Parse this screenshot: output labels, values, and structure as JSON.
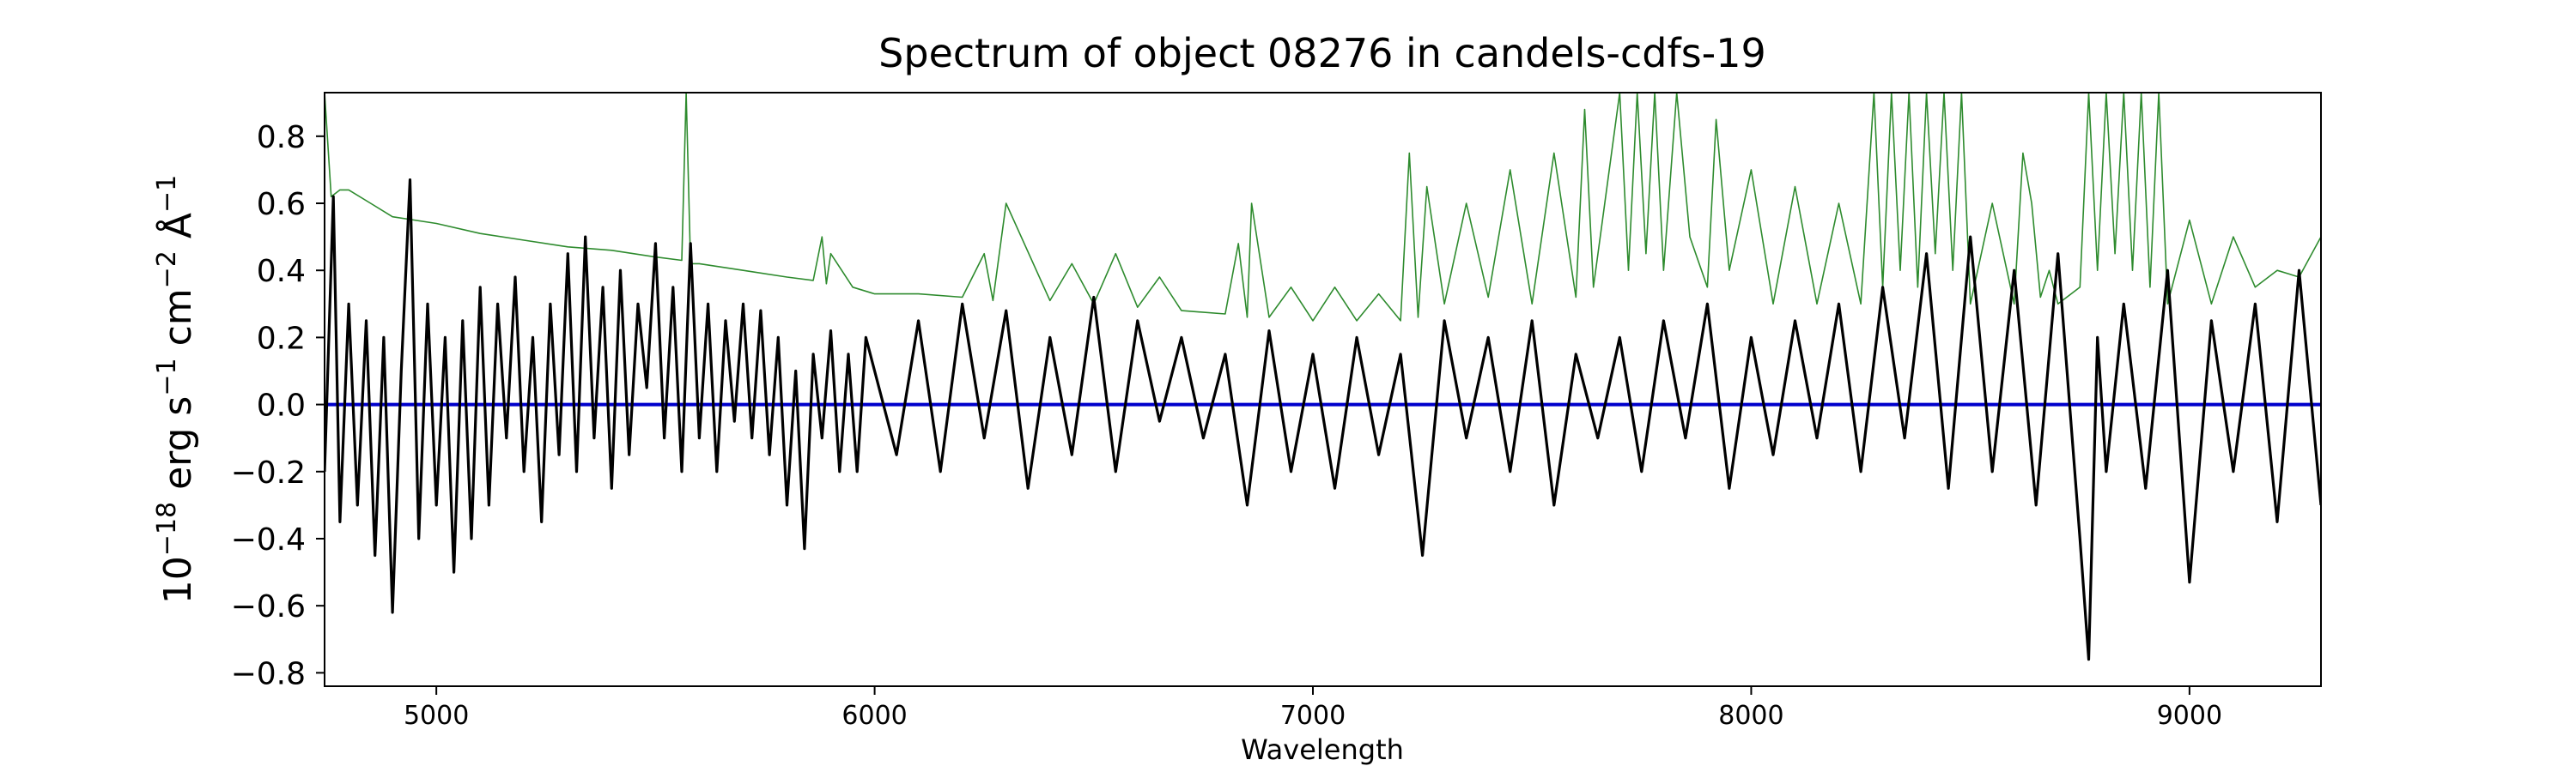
{
  "chart_data": {
    "type": "line",
    "title": "Spectrum of object 08276 in candels-cdfs-19",
    "xlabel": "Wavelength",
    "ylabel": "10^{-18} erg s^{-1} cm^{-2} Å^{-1}",
    "ylabel_parts": [
      "10",
      "−18",
      " erg s",
      "−1",
      " cm",
      "−2",
      " Å",
      "−1"
    ],
    "xlim": [
      4745,
      9300
    ],
    "ylim": [
      -0.84,
      0.93
    ],
    "x_ticks": [
      5000,
      6000,
      7000,
      8000,
      9000
    ],
    "x_tick_labels": [
      "5000",
      "6000",
      "7000",
      "8000",
      "9000"
    ],
    "y_ticks": [
      -0.8,
      -0.6,
      -0.4,
      -0.2,
      0.0,
      0.2,
      0.4,
      0.6,
      0.8
    ],
    "y_tick_labels": [
      "−0.8",
      "−0.6",
      "−0.4",
      "−0.2",
      "0.0",
      "0.2",
      "0.4",
      "0.6",
      "0.8"
    ],
    "grid": false,
    "colors": {
      "flux": "#000000",
      "error": "#2e8b2e",
      "model": "#0000cc"
    },
    "series": [
      {
        "key": "flux",
        "x": [
          4745,
          4765,
          4780,
          4800,
          4820,
          4840,
          4860,
          4880,
          4900,
          4920,
          4940,
          4960,
          4980,
          5000,
          5020,
          5040,
          5060,
          5080,
          5100,
          5120,
          5140,
          5160,
          5180,
          5200,
          5220,
          5240,
          5260,
          5280,
          5300,
          5320,
          5340,
          5360,
          5380,
          5400,
          5420,
          5440,
          5460,
          5480,
          5500,
          5520,
          5540,
          5560,
          5580,
          5600,
          5620,
          5640,
          5660,
          5680,
          5700,
          5720,
          5740,
          5760,
          5780,
          5800,
          5820,
          5840,
          5860,
          5880,
          5900,
          5920,
          5940,
          5960,
          5980,
          6000,
          6050,
          6100,
          6150,
          6200,
          6250,
          6300,
          6350,
          6400,
          6450,
          6500,
          6550,
          6600,
          6650,
          6700,
          6750,
          6800,
          6850,
          6900,
          6950,
          7000,
          7050,
          7100,
          7150,
          7200,
          7250,
          7300,
          7350,
          7400,
          7450,
          7500,
          7550,
          7600,
          7650,
          7700,
          7750,
          7800,
          7850,
          7900,
          7950,
          8000,
          8050,
          8100,
          8150,
          8200,
          8250,
          8300,
          8350,
          8400,
          8450,
          8500,
          8550,
          8600,
          8650,
          8700,
          8750,
          8770,
          8790,
          8810,
          8850,
          8900,
          8950,
          9000,
          9050,
          9100,
          9150,
          9200,
          9250,
          9300
        ],
        "y": [
          -0.2,
          0.62,
          -0.35,
          0.3,
          -0.3,
          0.25,
          -0.45,
          0.2,
          -0.62,
          0.1,
          0.67,
          -0.4,
          0.3,
          -0.3,
          0.2,
          -0.5,
          0.25,
          -0.4,
          0.35,
          -0.3,
          0.3,
          -0.1,
          0.38,
          -0.2,
          0.2,
          -0.35,
          0.3,
          -0.15,
          0.45,
          -0.2,
          0.5,
          -0.1,
          0.35,
          -0.25,
          0.4,
          -0.15,
          0.3,
          0.05,
          0.48,
          -0.1,
          0.35,
          -0.2,
          0.48,
          -0.1,
          0.3,
          -0.2,
          0.25,
          -0.05,
          0.3,
          -0.1,
          0.28,
          -0.15,
          0.2,
          -0.3,
          0.1,
          -0.43,
          0.15,
          -0.1,
          0.22,
          -0.2,
          0.15,
          -0.2,
          0.2,
          0.1,
          -0.15,
          0.25,
          -0.2,
          0.3,
          -0.1,
          0.28,
          -0.25,
          0.2,
          -0.15,
          0.32,
          -0.2,
          0.25,
          -0.05,
          0.2,
          -0.1,
          0.15,
          -0.3,
          0.22,
          -0.2,
          0.15,
          -0.25,
          0.2,
          -0.15,
          0.15,
          -0.45,
          0.25,
          -0.1,
          0.2,
          -0.2,
          0.25,
          -0.3,
          0.15,
          -0.1,
          0.2,
          -0.2,
          0.25,
          -0.1,
          0.3,
          -0.25,
          0.2,
          -0.15,
          0.25,
          -0.1,
          0.3,
          -0.2,
          0.35,
          -0.1,
          0.45,
          -0.25,
          0.5,
          -0.2,
          0.4,
          -0.3,
          0.45,
          -0.4,
          -0.76,
          0.2,
          -0.2,
          0.3,
          -0.25,
          0.4,
          -0.53,
          0.25,
          -0.2,
          0.3,
          -0.35,
          0.4,
          -0.3
        ]
      },
      {
        "key": "error",
        "x": [
          4745,
          4760,
          4780,
          4800,
          4850,
          4900,
          5000,
          5100,
          5200,
          5300,
          5400,
          5500,
          5560,
          5570,
          5580,
          5600,
          5700,
          5800,
          5860,
          5880,
          5890,
          5900,
          5950,
          6000,
          6100,
          6200,
          6250,
          6270,
          6300,
          6400,
          6450,
          6500,
          6550,
          6600,
          6650,
          6700,
          6800,
          6830,
          6850,
          6860,
          6900,
          6950,
          7000,
          7050,
          7100,
          7150,
          7200,
          7220,
          7240,
          7260,
          7300,
          7350,
          7400,
          7450,
          7500,
          7550,
          7600,
          7620,
          7640,
          7700,
          7720,
          7740,
          7760,
          7780,
          7800,
          7830,
          7860,
          7900,
          7920,
          7950,
          8000,
          8050,
          8100,
          8150,
          8200,
          8250,
          8280,
          8300,
          8320,
          8340,
          8360,
          8380,
          8400,
          8420,
          8440,
          8460,
          8480,
          8500,
          8550,
          8600,
          8620,
          8640,
          8660,
          8680,
          8700,
          8750,
          8770,
          8790,
          8810,
          8830,
          8850,
          8870,
          8890,
          8910,
          8930,
          8950,
          9000,
          9050,
          9100,
          9150,
          9200,
          9250,
          9300
        ],
        "y": [
          0.93,
          0.62,
          0.64,
          0.64,
          0.6,
          0.56,
          0.54,
          0.51,
          0.49,
          0.47,
          0.46,
          0.44,
          0.43,
          0.93,
          0.42,
          0.42,
          0.4,
          0.38,
          0.37,
          0.5,
          0.36,
          0.45,
          0.35,
          0.33,
          0.33,
          0.32,
          0.45,
          0.31,
          0.6,
          0.31,
          0.42,
          0.3,
          0.45,
          0.29,
          0.38,
          0.28,
          0.27,
          0.48,
          0.26,
          0.6,
          0.26,
          0.35,
          0.25,
          0.35,
          0.25,
          0.33,
          0.25,
          0.75,
          0.26,
          0.65,
          0.3,
          0.6,
          0.32,
          0.7,
          0.3,
          0.75,
          0.32,
          0.88,
          0.35,
          0.93,
          0.4,
          0.93,
          0.45,
          0.93,
          0.4,
          0.93,
          0.5,
          0.35,
          0.85,
          0.4,
          0.7,
          0.3,
          0.65,
          0.3,
          0.6,
          0.3,
          0.93,
          0.35,
          0.93,
          0.4,
          0.93,
          0.35,
          0.93,
          0.45,
          0.93,
          0.4,
          0.93,
          0.3,
          0.6,
          0.3,
          0.75,
          0.6,
          0.32,
          0.4,
          0.3,
          0.35,
          0.93,
          0.4,
          0.93,
          0.45,
          0.93,
          0.4,
          0.93,
          0.35,
          0.93,
          0.3,
          0.55,
          0.3,
          0.5,
          0.35,
          0.4,
          0.38,
          0.5
        ]
      },
      {
        "key": "model",
        "x": [
          4745,
          9300
        ],
        "y": [
          0.0,
          0.0
        ]
      }
    ]
  }
}
